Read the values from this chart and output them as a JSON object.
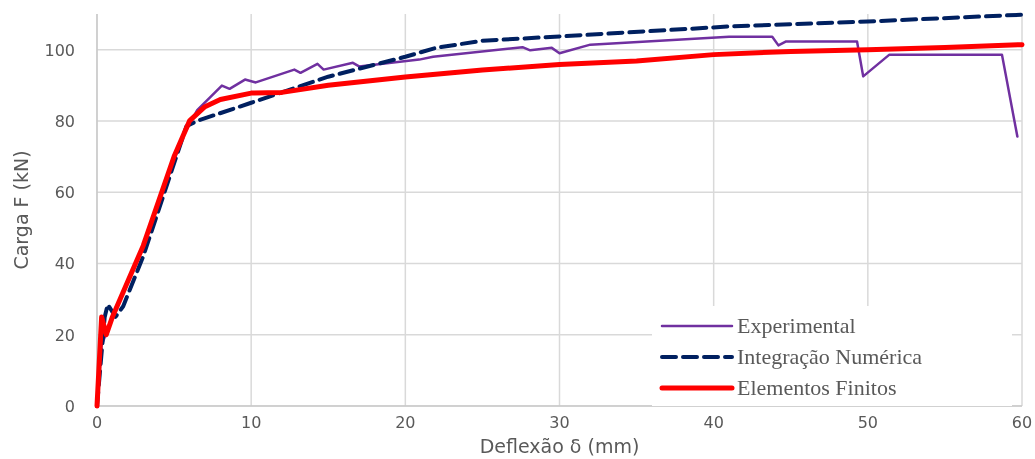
{
  "chart_data": {
    "type": "line",
    "xlabel": "Deflexão δ (mm)",
    "ylabel": "Carga F (kN)",
    "xlim": [
      0,
      60
    ],
    "xticks": [
      0,
      10,
      20,
      30,
      40,
      50,
      60
    ],
    "ylim": [
      0,
      110
    ],
    "yticks": [
      0,
      20,
      40,
      60,
      80,
      100
    ],
    "grid": true,
    "legend": "bottom right",
    "series": [
      {
        "name": "Experimental",
        "color": "#7030a0",
        "line_style": "solid",
        "x": [
          0,
          0.3,
          1,
          3,
          5.5,
          6.5,
          8.1,
          8.6,
          9.6,
          10.3,
          12.8,
          13.2,
          14.3,
          14.7,
          16.6,
          17,
          20.9,
          21.8,
          27.6,
          28.1,
          29.5,
          30,
          32,
          41,
          43.8,
          44.2,
          44.7,
          49.3,
          49.7,
          51.4,
          58.7,
          59.7
        ],
        "values": [
          0,
          17,
          25,
          45,
          75,
          83,
          89.9,
          89,
          91.6,
          90.8,
          94.4,
          93.5,
          96,
          94.4,
          96.3,
          95.3,
          97.2,
          98,
          100.7,
          99.8,
          100.5,
          99,
          101.4,
          103.6,
          103.6,
          101.2,
          102.3,
          102.3,
          92.5,
          98.6,
          98.6,
          75.6
        ]
      },
      {
        "name": "Integração Numérica",
        "color": "#002060",
        "line_style": "dashed",
        "x": [
          0,
          0.5,
          0.7,
          1.2,
          1.7,
          3,
          5.8,
          6.5,
          10,
          15,
          20,
          22,
          25,
          30,
          41,
          50,
          60
        ],
        "values": [
          0,
          25,
          28.5,
          25,
          28,
          42,
          78.5,
          80,
          85.1,
          92.4,
          98,
          100.5,
          102.5,
          103.7,
          106.5,
          107.9,
          109.8
        ]
      },
      {
        "name": "Elementos Finitos",
        "color": "#ff0000",
        "line_style": "solid",
        "x": [
          0,
          0.3,
          0.6,
          1,
          3,
          5,
          6,
          7,
          8,
          10,
          12,
          15,
          20,
          25,
          30,
          35,
          40,
          45,
          50,
          55,
          60
        ],
        "values": [
          0,
          25,
          20,
          25,
          45,
          70,
          80,
          84,
          86,
          87.8,
          88,
          90,
          92.3,
          94.3,
          95.8,
          96.8,
          98.6,
          99.5,
          100,
          100.6,
          101.4
        ]
      }
    ]
  }
}
